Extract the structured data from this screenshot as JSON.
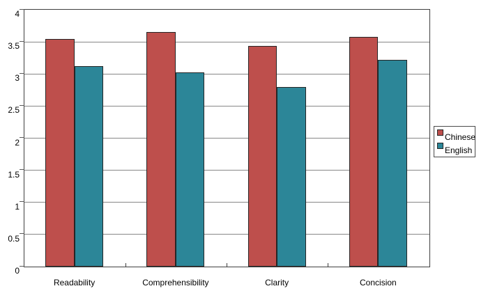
{
  "chart_data": {
    "type": "bar",
    "title": "",
    "categories": [
      "Readability",
      "Comprehensibility",
      "Clarity",
      "Concision"
    ],
    "series": [
      {
        "name": "Chinese",
        "color": "#BE4F4C",
        "values": [
          3.55,
          3.65,
          3.44,
          3.58
        ]
      },
      {
        "name": "English",
        "color": "#2C8698",
        "values": [
          3.12,
          3.02,
          2.8,
          3.22
        ]
      }
    ],
    "ylim": [
      0,
      4
    ],
    "ytick_step": 0.5,
    "ytick_labels": [
      "0",
      "0.5",
      "1",
      "1.5",
      "2",
      "2.5",
      "3",
      "3.5",
      "4"
    ],
    "grid": true,
    "legend_position": "right"
  },
  "colors": {
    "background": "#ffffff",
    "gridline": "#878787",
    "plot_border": "#3f3f3f",
    "bar_border": "#262626",
    "text": "#000000",
    "legend_border": "#4a4a4a"
  }
}
